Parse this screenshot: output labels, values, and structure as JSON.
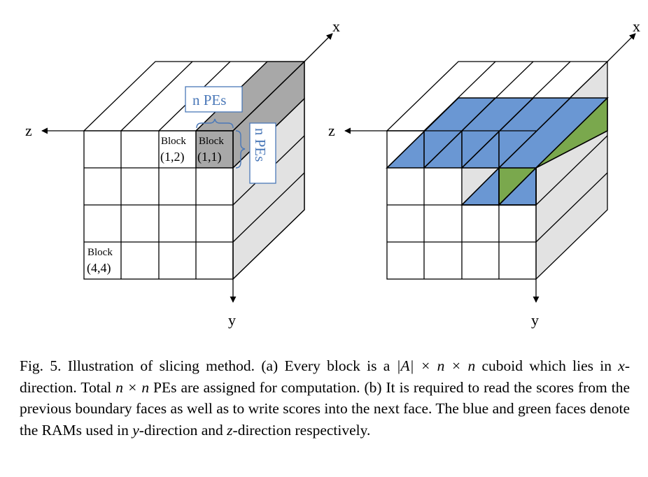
{
  "colors": {
    "blue_face": "#6a97d3",
    "green_face": "#7aa84d",
    "dark_gray": "#a8a8a8",
    "light_gray": "#e2e2e2",
    "label_blue": "#4a78b8"
  },
  "figure_a": {
    "axis_x": "x",
    "axis_y": "y",
    "axis_z": "z",
    "block_label": "Block",
    "block_1_1": "(1,1)",
    "block_1_2": "(1,2)",
    "block_4_4": "(4,4)",
    "n_pes_top": "n PEs",
    "n_pes_side": "n PEs"
  },
  "figure_b": {
    "axis_x": "x",
    "axis_y": "y",
    "axis_z": "z"
  },
  "caption": {
    "part1": "Fig. 5.  Illustration of slicing method. (a) Every block is a ",
    "math1": "|A| × n × n",
    "part2": " cuboid which lies in ",
    "math2": "x",
    "part3": "-direction. Total ",
    "math3": "n × n",
    "part4": " PEs are assigned for computation. (b) It is required to read the scores from the previous boundary faces as well as to write scores into the next face. The blue and green faces denote the RAMs used in ",
    "math4": "y",
    "part5": "-direction and ",
    "math5": "z",
    "part6": "-direction respectively."
  }
}
